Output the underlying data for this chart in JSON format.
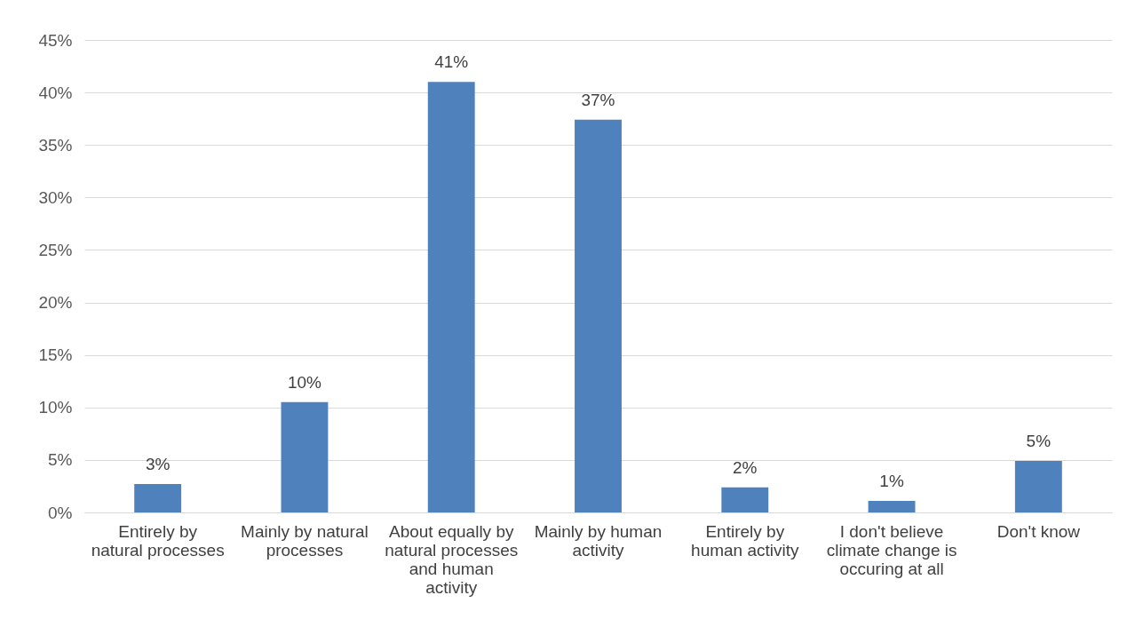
{
  "chart_data": {
    "type": "bar",
    "categories": [
      "Entirely by natural processes",
      "Mainly by natural processes",
      "About equally by natural processes and human activity",
      "Mainly by human activity",
      "Entirely by human activity",
      "I don't believe climate change is occuring at all",
      "Don't know"
    ],
    "values": [
      2.7,
      10.5,
      41,
      37.4,
      2.4,
      1.1,
      4.9
    ],
    "value_labels": [
      "3%",
      "10%",
      "41%",
      "37%",
      "2%",
      "1%",
      "5%"
    ],
    "color": "#4f81bd",
    "ylim": [
      0,
      45
    ],
    "yticks": [
      {
        "value": 0,
        "label": "0%"
      },
      {
        "value": 5,
        "label": "5%"
      },
      {
        "value": 10,
        "label": "10%"
      },
      {
        "value": 15,
        "label": "15%"
      },
      {
        "value": 20,
        "label": "20%"
      },
      {
        "value": 25,
        "label": "25%"
      },
      {
        "value": 30,
        "label": "30%"
      },
      {
        "value": 35,
        "label": "35%"
      },
      {
        "value": 40,
        "label": "40%"
      },
      {
        "value": 45,
        "label": "45%"
      }
    ],
    "grid": "y"
  }
}
